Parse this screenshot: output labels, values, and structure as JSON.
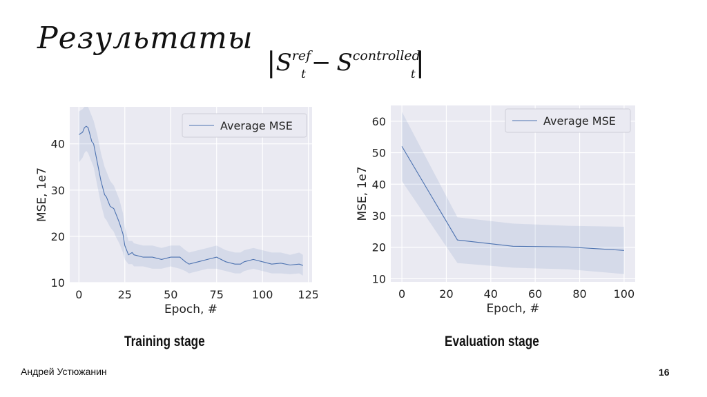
{
  "slide": {
    "title": "Результаты",
    "formula": {
      "abs_open": "|",
      "S1": "S",
      "S1_sup": "ref",
      "S1_sub": "t",
      "minus": "−",
      "S2": "S",
      "S2_sup": "controlled",
      "S2_sub": "t",
      "abs_close": "|"
    },
    "author": "Андрей Устюжанин",
    "page_number": "16"
  },
  "captions": {
    "train": "Training stage",
    "eval": "Evaluation stage"
  },
  "chart_data": [
    {
      "type": "line",
      "caption": "Training stage",
      "xlabel": "Epoch, #",
      "ylabel": "MSE, 1e7",
      "xlim": [
        -5,
        127
      ],
      "ylim": [
        10,
        48
      ],
      "xticks": [
        0,
        25,
        50,
        75,
        100,
        125
      ],
      "yticks": [
        10,
        20,
        30,
        40
      ],
      "grid": true,
      "legend_position": "top-right",
      "series": [
        {
          "name": "Average MSE",
          "color": "#4c72b0",
          "x": [
            0,
            2,
            3,
            4,
            5,
            6,
            7,
            8,
            10,
            12,
            14,
            15,
            17,
            19,
            20,
            22,
            24,
            25,
            27,
            29,
            30,
            35,
            40,
            45,
            50,
            55,
            58,
            60,
            65,
            70,
            75,
            80,
            85,
            88,
            90,
            95,
            100,
            105,
            110,
            115,
            120,
            122
          ],
          "y": [
            42,
            42.5,
            43.5,
            43.8,
            43.5,
            42,
            40.5,
            40,
            36,
            32,
            29,
            28.5,
            26.5,
            26,
            25,
            23,
            20.5,
            18,
            16,
            16.5,
            16,
            15.5,
            15.5,
            15,
            15.5,
            15.5,
            14.5,
            14,
            14.5,
            15,
            15.5,
            14.5,
            14,
            14,
            14.5,
            15,
            14.5,
            14,
            14.2,
            13.8,
            14,
            13.7
          ],
          "y_lower": [
            36,
            37,
            38,
            38.5,
            38,
            37,
            36,
            35,
            31,
            27,
            24,
            23.5,
            22,
            21,
            20,
            18.5,
            16.5,
            15,
            14,
            14,
            13.5,
            13.5,
            13,
            13,
            13.5,
            13,
            12.5,
            12,
            12.5,
            13,
            13,
            12.5,
            12,
            12,
            12.5,
            13,
            12.5,
            12,
            12,
            11.8,
            12,
            11.5
          ],
          "y_upper": [
            47,
            47.5,
            48,
            48,
            48,
            47,
            46,
            45,
            42,
            38,
            35,
            34,
            32,
            31,
            30,
            28,
            25,
            22,
            19,
            19,
            18.5,
            18,
            18,
            17.5,
            18,
            18,
            17,
            16.5,
            17,
            17.5,
            18,
            17,
            16.5,
            16.5,
            17,
            17.5,
            17,
            16.5,
            16.5,
            16,
            16.5,
            16
          ]
        }
      ]
    },
    {
      "type": "line",
      "caption": "Evaluation stage",
      "xlabel": "Epoch, #",
      "ylabel": "MSE, 1e7",
      "xlim": [
        -5,
        105
      ],
      "ylim": [
        9,
        65
      ],
      "xticks": [
        0,
        20,
        40,
        60,
        80,
        100
      ],
      "yticks": [
        10,
        20,
        30,
        40,
        50,
        60
      ],
      "grid": true,
      "legend_position": "top-right",
      "series": [
        {
          "name": "Average MSE",
          "color": "#4c72b0",
          "x": [
            0,
            25,
            50,
            75,
            100
          ],
          "y": [
            52,
            22.3,
            20.3,
            20.1,
            19
          ],
          "y_lower": [
            41,
            15,
            13.5,
            13,
            11.5
          ],
          "y_upper": [
            63,
            29.5,
            27.5,
            26.8,
            26.5
          ]
        }
      ]
    }
  ]
}
